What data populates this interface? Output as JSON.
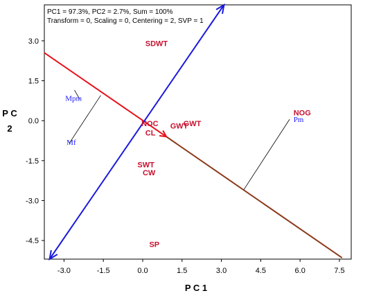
{
  "chart_data": {
    "type": "scatter",
    "info_lines": [
      "PC1 = 97.3%, PC2 = 2.7%, Sum = 100%",
      "Transform = 0, Scaling = 0, Centering = 2, SVP = 1"
    ],
    "xlabel": "P C 1",
    "ylabel": "P C\n2",
    "xlim": [
      -3.75,
      7.95
    ],
    "ylim": [
      -5.2,
      4.35
    ],
    "xticks": [
      -3.0,
      -1.5,
      0.0,
      1.5,
      3.0,
      4.5,
      6.0,
      7.5
    ],
    "yticks": [
      3.0,
      1.5,
      0.0,
      -1.5,
      -3.0,
      -4.5
    ],
    "tick_labels_x": [
      "-3.0",
      "-1.5",
      "0.0",
      "1.5",
      "3.0",
      "4.5",
      "6.0",
      "7.5"
    ],
    "tick_labels_y": [
      "3.0",
      "1.5",
      "0.0",
      "-1.5",
      "-3.0",
      "-4.5"
    ],
    "red_points": [
      {
        "label": "SDWT",
        "x": 0.1,
        "y": 2.8
      },
      {
        "label": "NOG",
        "x": 5.75,
        "y": 0.2
      },
      {
        "label": "NOC",
        "x": -0.05,
        "y": -0.2
      },
      {
        "label": "CL",
        "x": 0.1,
        "y": -0.55
      },
      {
        "label": "GWT",
        "x": 1.05,
        "y": -0.3
      },
      {
        "label": "GWT",
        "x": 1.55,
        "y": -0.2
      },
      {
        "label": "SWT",
        "x": -0.2,
        "y": -1.75
      },
      {
        "label": "CW",
        "x": 0.0,
        "y": -2.05
      },
      {
        "label": "SP",
        "x": 0.25,
        "y": -4.75
      }
    ],
    "blue_points": [
      {
        "label": "Mpm",
        "x": -2.95,
        "y": 0.75
      },
      {
        "label": "Mf",
        "x": -2.9,
        "y": -0.9
      },
      {
        "label": "Pm",
        "x": 5.75,
        "y": -0.05
      }
    ],
    "red_axis": {
      "from": [
        -3.75,
        2.55
      ],
      "to": [
        7.6,
        -5.15
      ],
      "arrow_at": [
        0.9,
        -0.6
      ],
      "color": "#e8101a",
      "secondary_color": "#8b3a1a"
    },
    "blue_axis": {
      "from": [
        -3.55,
        -5.2
      ],
      "to": [
        3.1,
        4.35
      ],
      "color": "#1a1add"
    },
    "projections": [
      {
        "from": [
          -2.4,
          0.8
        ],
        "to": [
          -2.6,
          1.15
        ]
      },
      {
        "from": [
          -2.8,
          -0.85
        ],
        "to": [
          -1.6,
          0.95
        ]
      },
      {
        "from": [
          5.6,
          0.05
        ],
        "to": [
          3.85,
          -2.6
        ]
      }
    ]
  }
}
